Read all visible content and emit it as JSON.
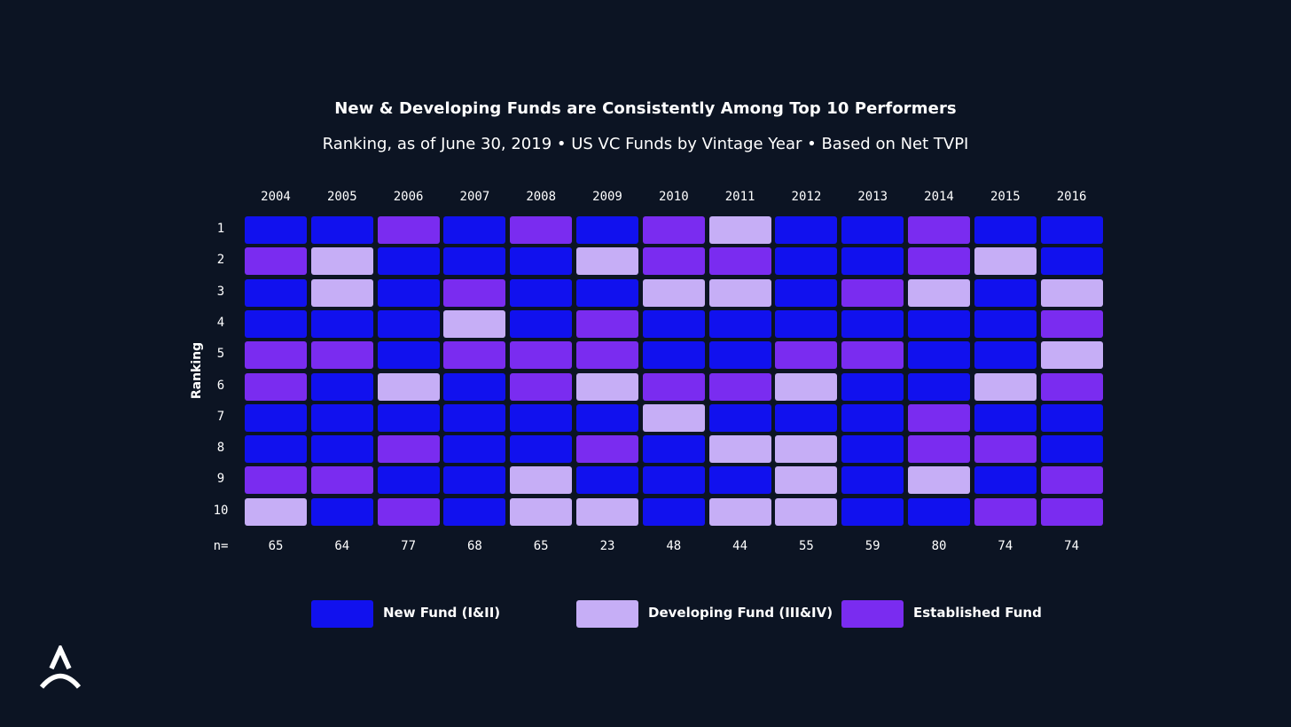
{
  "chart_data": {
    "type": "heatmap",
    "title": "New & Developing Funds are Consistently Among Top 10 Performers",
    "subtitle": "Ranking, as of June 30, 2019 • US VC Funds by Vintage Year • Based on Net TVPI",
    "ylabel": "Ranking",
    "n_prefix": "n=",
    "years": [
      "2004",
      "2005",
      "2006",
      "2007",
      "2008",
      "2009",
      "2010",
      "2011",
      "2012",
      "2013",
      "2014",
      "2015",
      "2016"
    ],
    "rankings": [
      "1",
      "2",
      "3",
      "4",
      "5",
      "6",
      "7",
      "8",
      "9",
      "10"
    ],
    "n_values": [
      "65",
      "64",
      "77",
      "68",
      "65",
      "23",
      "48",
      "44",
      "55",
      "59",
      "80",
      "74",
      "74"
    ],
    "categories": {
      "N": {
        "label": "New Fund (I&II)",
        "color": "#1111ee"
      },
      "D": {
        "label": "Developing Fund (III&IV)",
        "color": "#c6aef6"
      },
      "E": {
        "label": "Established Fund",
        "color": "#7a2cf0"
      }
    },
    "legend_order": [
      "N",
      "D",
      "E"
    ],
    "grid": [
      [
        "N",
        "N",
        "E",
        "N",
        "E",
        "N",
        "E",
        "D",
        "N",
        "N",
        "E",
        "N",
        "N"
      ],
      [
        "E",
        "D",
        "N",
        "N",
        "N",
        "D",
        "E",
        "E",
        "N",
        "N",
        "E",
        "D",
        "N"
      ],
      [
        "N",
        "D",
        "N",
        "E",
        "N",
        "N",
        "D",
        "D",
        "N",
        "E",
        "D",
        "N",
        "D"
      ],
      [
        "N",
        "N",
        "N",
        "D",
        "N",
        "E",
        "N",
        "N",
        "N",
        "N",
        "N",
        "N",
        "E"
      ],
      [
        "E",
        "E",
        "N",
        "E",
        "E",
        "E",
        "N",
        "N",
        "E",
        "E",
        "N",
        "N",
        "D"
      ],
      [
        "E",
        "N",
        "D",
        "N",
        "E",
        "D",
        "E",
        "E",
        "D",
        "N",
        "N",
        "D",
        "E"
      ],
      [
        "N",
        "N",
        "N",
        "N",
        "N",
        "N",
        "D",
        "N",
        "N",
        "N",
        "E",
        "N",
        "N"
      ],
      [
        "N",
        "N",
        "E",
        "N",
        "N",
        "E",
        "N",
        "D",
        "D",
        "N",
        "E",
        "E",
        "N"
      ],
      [
        "E",
        "E",
        "N",
        "N",
        "D",
        "N",
        "N",
        "N",
        "D",
        "N",
        "D",
        "N",
        "E"
      ],
      [
        "D",
        "N",
        "E",
        "N",
        "D",
        "D",
        "N",
        "D",
        "D",
        "N",
        "N",
        "E",
        "E"
      ]
    ]
  },
  "logo": {
    "name": "company-logo"
  }
}
